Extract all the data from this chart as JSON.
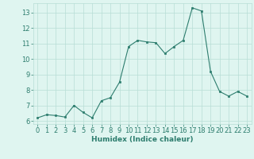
{
  "title": "",
  "xlabel": "Humidex (Indice chaleur)",
  "ylabel": "",
  "x": [
    0,
    1,
    2,
    3,
    4,
    5,
    6,
    7,
    8,
    9,
    10,
    11,
    12,
    13,
    14,
    15,
    16,
    17,
    18,
    19,
    20,
    21,
    22,
    23
  ],
  "y": [
    6.2,
    6.4,
    6.35,
    6.25,
    7.0,
    6.55,
    6.2,
    7.3,
    7.5,
    8.5,
    10.8,
    11.2,
    11.1,
    11.05,
    10.35,
    10.8,
    11.2,
    13.3,
    13.1,
    9.2,
    7.9,
    7.6,
    7.9,
    7.6
  ],
  "line_color": "#2d7d6e",
  "marker_color": "#2d7d6e",
  "bg_color": "#dff5f0",
  "grid_color": "#b8ddd6",
  "text_color": "#2d7d6e",
  "ylim": [
    5.8,
    13.6
  ],
  "xlim": [
    -0.5,
    23.5
  ],
  "yticks": [
    6,
    7,
    8,
    9,
    10,
    11,
    12,
    13
  ],
  "xticks": [
    0,
    1,
    2,
    3,
    4,
    5,
    6,
    7,
    8,
    9,
    10,
    11,
    12,
    13,
    14,
    15,
    16,
    17,
    18,
    19,
    20,
    21,
    22,
    23
  ],
  "fontsize_label": 6.5,
  "fontsize_tick": 6.0
}
